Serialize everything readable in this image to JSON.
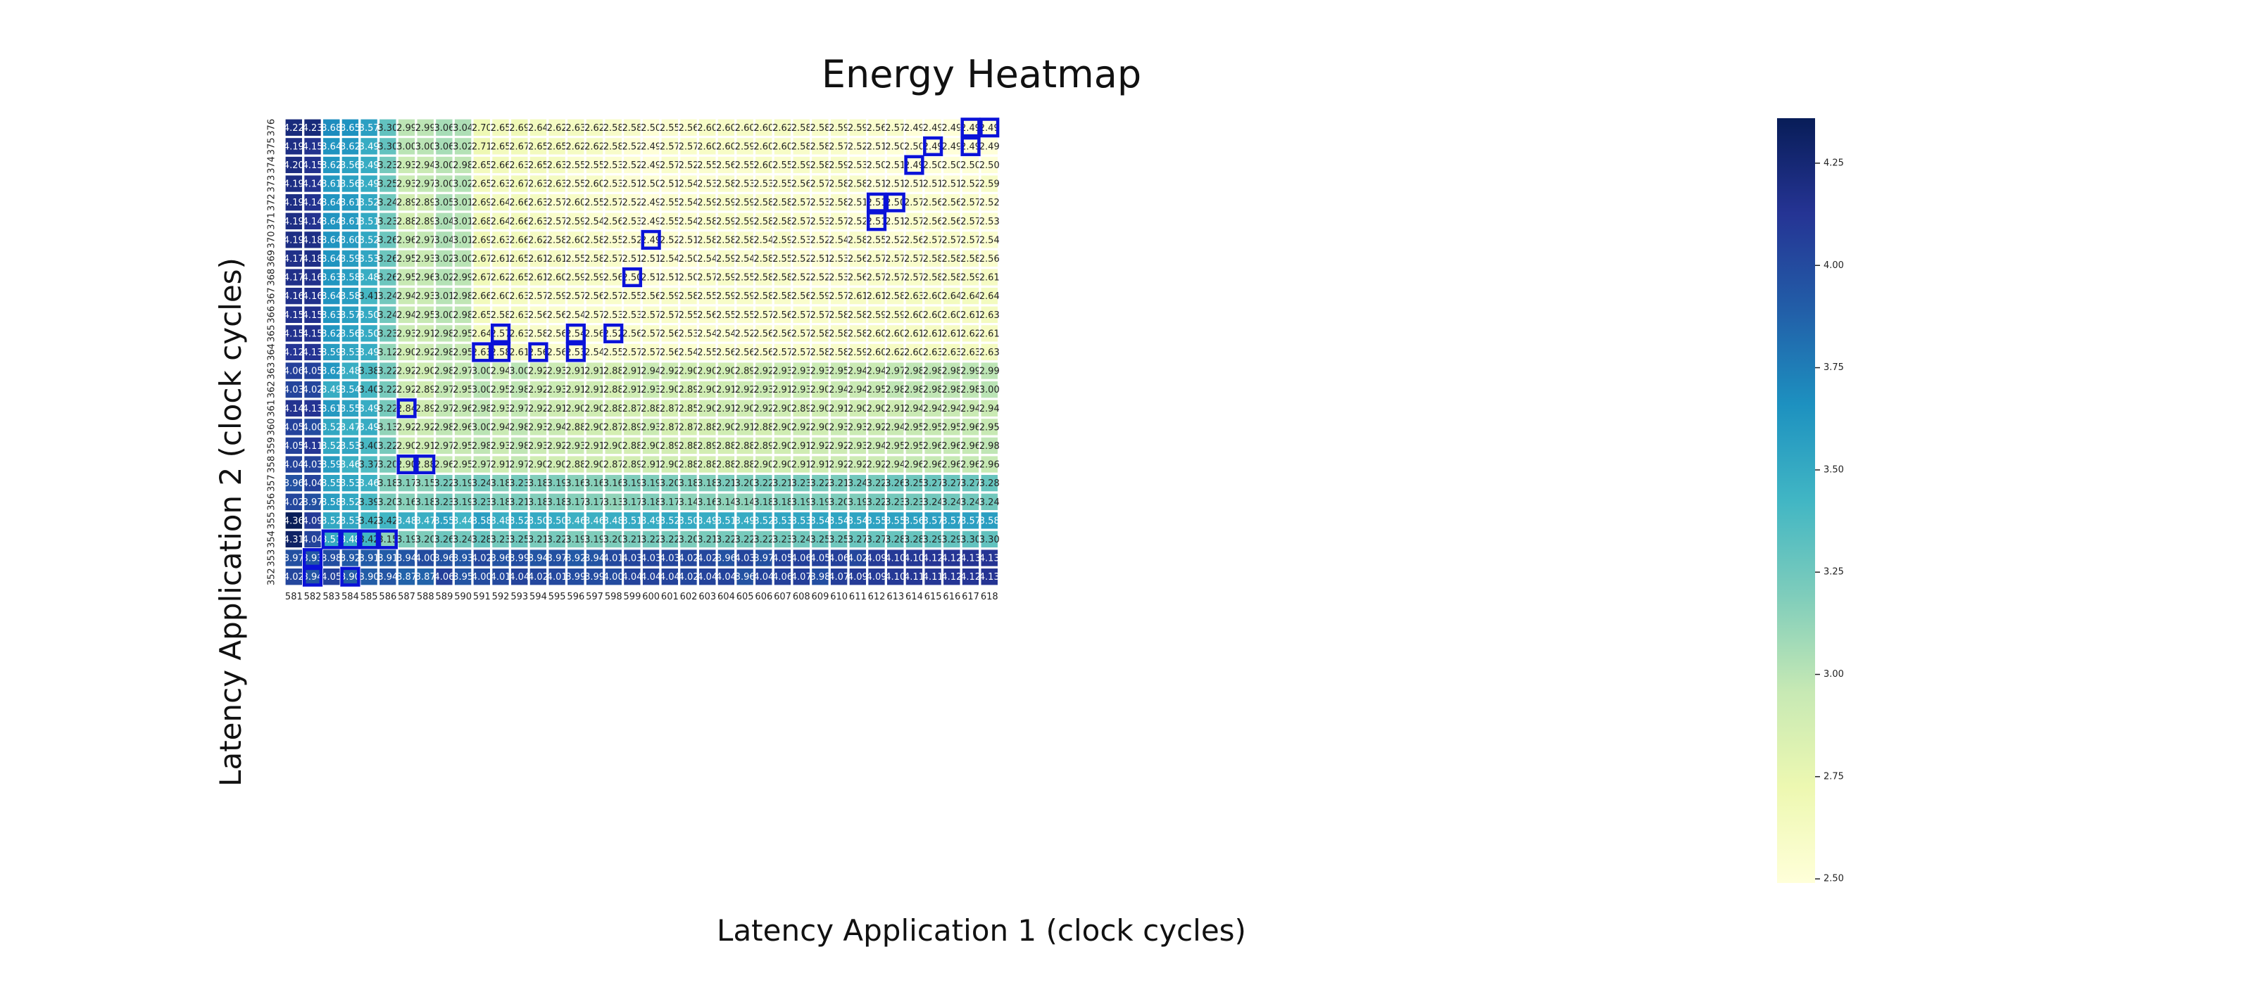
{
  "chart_data": {
    "type": "heatmap",
    "title": "Energy Heatmap",
    "xlabel": "Latency Application 1 (clock cycles)",
    "ylabel": "Latency Application 2 (clock cycles)",
    "x": [
      581,
      582,
      583,
      584,
      585,
      586,
      587,
      588,
      589,
      590,
      591,
      592,
      593,
      594,
      595,
      596,
      597,
      598,
      599,
      600,
      601,
      602,
      603,
      604,
      605,
      606,
      607,
      608,
      609,
      610,
      611,
      612,
      613,
      614,
      615,
      616,
      617,
      618
    ],
    "y": [
      376,
      375,
      374,
      373,
      372,
      371,
      370,
      369,
      368,
      367,
      366,
      365,
      364,
      363,
      362,
      361,
      360,
      359,
      358,
      357,
      356,
      355,
      354,
      353,
      352
    ],
    "values": [
      [
        4.22,
        4.23,
        3.68,
        3.65,
        3.57,
        3.3,
        2.99,
        2.99,
        3.06,
        3.04,
        2.7,
        2.65,
        2.69,
        2.64,
        2.62,
        2.63,
        2.62,
        2.58,
        2.58,
        2.5,
        2.55,
        2.56,
        2.6,
        2.6,
        2.6,
        2.6,
        2.62,
        2.58,
        2.58,
        2.59,
        2.59,
        2.56,
        2.57,
        2.49,
        2.49,
        2.49,
        2.49,
        2.49
      ],
      [
        4.19,
        4.15,
        3.64,
        3.62,
        3.49,
        3.3,
        3.0,
        3.0,
        3.06,
        3.02,
        2.71,
        2.65,
        2.67,
        2.65,
        2.65,
        2.62,
        2.62,
        2.58,
        2.52,
        2.49,
        2.57,
        2.57,
        2.6,
        2.6,
        2.59,
        2.6,
        2.6,
        2.58,
        2.58,
        2.57,
        2.52,
        2.51,
        2.5,
        2.5,
        2.49,
        2.49,
        2.49,
        2.49
      ],
      [
        4.2,
        4.15,
        3.62,
        3.56,
        3.49,
        3.23,
        2.93,
        2.94,
        3.0,
        2.98,
        2.65,
        2.66,
        2.63,
        2.65,
        2.63,
        2.55,
        2.55,
        2.53,
        2.52,
        2.49,
        2.57,
        2.52,
        2.55,
        2.56,
        2.55,
        2.6,
        2.55,
        2.59,
        2.58,
        2.59,
        2.53,
        2.5,
        2.51,
        2.49,
        2.5,
        2.5,
        2.5,
        2.5
      ],
      [
        4.19,
        4.14,
        3.61,
        3.56,
        3.49,
        3.25,
        2.93,
        2.97,
        3.0,
        3.02,
        2.65,
        2.63,
        2.67,
        2.63,
        2.63,
        2.55,
        2.6,
        2.53,
        2.51,
        2.5,
        2.51,
        2.54,
        2.53,
        2.58,
        2.53,
        2.53,
        2.55,
        2.56,
        2.57,
        2.58,
        2.58,
        2.51,
        2.51,
        2.51,
        2.51,
        2.51,
        2.52,
        2.59
      ],
      [
        4.19,
        4.14,
        3.64,
        3.61,
        3.52,
        3.24,
        2.89,
        2.89,
        3.05,
        3.01,
        2.69,
        2.64,
        2.66,
        2.63,
        2.57,
        2.6,
        2.55,
        2.57,
        2.52,
        2.49,
        2.55,
        2.54,
        2.59,
        2.59,
        2.59,
        2.58,
        2.58,
        2.57,
        2.53,
        2.58,
        2.51,
        2.51,
        2.5,
        2.57,
        2.56,
        2.56,
        2.57,
        2.52
      ],
      [
        4.19,
        4.14,
        3.64,
        3.61,
        3.51,
        3.23,
        2.88,
        2.89,
        3.04,
        3.01,
        2.68,
        2.64,
        2.66,
        2.63,
        2.57,
        2.59,
        2.54,
        2.56,
        2.53,
        2.49,
        2.55,
        2.54,
        2.58,
        2.59,
        2.59,
        2.58,
        2.58,
        2.57,
        2.53,
        2.57,
        2.52,
        2.51,
        2.51,
        2.57,
        2.56,
        2.56,
        2.57,
        2.53
      ],
      [
        4.19,
        4.18,
        3.64,
        3.6,
        3.52,
        3.26,
        2.96,
        2.97,
        3.04,
        3.01,
        2.69,
        2.63,
        2.66,
        2.62,
        2.58,
        2.6,
        2.58,
        2.55,
        2.52,
        2.49,
        2.52,
        2.51,
        2.58,
        2.58,
        2.58,
        2.54,
        2.59,
        2.53,
        2.52,
        2.54,
        2.58,
        2.55,
        2.52,
        2.56,
        2.57,
        2.57,
        2.57,
        2.54
      ],
      [
        4.17,
        4.18,
        3.64,
        3.59,
        3.53,
        3.26,
        2.95,
        2.93,
        3.02,
        3.0,
        2.67,
        2.61,
        2.65,
        2.61,
        2.61,
        2.55,
        2.58,
        2.57,
        2.51,
        2.51,
        2.54,
        2.5,
        2.54,
        2.59,
        2.54,
        2.58,
        2.55,
        2.52,
        2.51,
        2.53,
        2.56,
        2.57,
        2.57,
        2.57,
        2.58,
        2.58,
        2.58,
        2.56
      ],
      [
        4.17,
        4.16,
        3.63,
        3.58,
        3.48,
        3.26,
        2.95,
        2.96,
        3.02,
        2.99,
        2.67,
        2.62,
        2.65,
        2.61,
        2.6,
        2.59,
        2.59,
        2.56,
        2.5,
        2.51,
        2.51,
        2.5,
        2.57,
        2.59,
        2.55,
        2.58,
        2.58,
        2.52,
        2.52,
        2.53,
        2.56,
        2.57,
        2.57,
        2.57,
        2.58,
        2.58,
        2.59,
        2.61
      ],
      [
        4.16,
        4.16,
        3.64,
        3.58,
        3.41,
        3.24,
        2.94,
        2.93,
        3.01,
        2.98,
        2.66,
        2.6,
        2.63,
        2.57,
        2.59,
        2.57,
        2.56,
        2.57,
        2.55,
        2.56,
        2.59,
        2.58,
        2.55,
        2.59,
        2.59,
        2.58,
        2.58,
        2.56,
        2.59,
        2.57,
        2.61,
        2.61,
        2.58,
        2.63,
        2.6,
        2.64,
        2.64,
        2.64
      ],
      [
        4.15,
        4.15,
        3.63,
        3.57,
        3.5,
        3.24,
        2.94,
        2.95,
        3.0,
        2.98,
        2.65,
        2.58,
        2.63,
        2.56,
        2.56,
        2.54,
        2.57,
        2.53,
        2.53,
        2.57,
        2.57,
        2.55,
        2.56,
        2.55,
        2.55,
        2.57,
        2.56,
        2.57,
        2.57,
        2.58,
        2.58,
        2.59,
        2.59,
        2.6,
        2.6,
        2.6,
        2.61,
        2.63
      ],
      [
        4.15,
        4.15,
        3.62,
        3.56,
        3.5,
        3.23,
        2.93,
        2.91,
        2.98,
        2.95,
        2.64,
        2.57,
        2.63,
        2.58,
        2.56,
        2.54,
        2.56,
        2.52,
        2.56,
        2.57,
        2.56,
        2.53,
        2.54,
        2.54,
        2.52,
        2.56,
        2.56,
        2.57,
        2.58,
        2.58,
        2.58,
        2.6,
        2.6,
        2.61,
        2.61,
        2.61,
        2.62,
        2.61
      ],
      [
        4.12,
        4.13,
        3.59,
        3.53,
        3.49,
        3.12,
        2.9,
        2.92,
        2.98,
        2.95,
        2.63,
        2.58,
        2.61,
        2.56,
        2.56,
        2.53,
        2.54,
        2.55,
        2.57,
        2.57,
        2.56,
        2.54,
        2.55,
        2.56,
        2.56,
        2.56,
        2.57,
        2.57,
        2.58,
        2.58,
        2.59,
        2.6,
        2.62,
        2.6,
        2.63,
        2.63,
        2.63,
        2.63
      ],
      [
        4.06,
        4.05,
        3.62,
        3.48,
        3.38,
        3.22,
        2.92,
        2.9,
        2.98,
        2.97,
        3.0,
        2.94,
        3.0,
        2.92,
        2.93,
        2.91,
        2.91,
        2.88,
        2.91,
        2.94,
        2.92,
        2.9,
        2.9,
        2.9,
        2.89,
        2.92,
        2.93,
        2.93,
        2.93,
        2.95,
        2.94,
        2.94,
        2.97,
        2.98,
        2.98,
        2.98,
        2.99,
        2.99
      ],
      [
        4.03,
        4.02,
        3.49,
        3.54,
        3.4,
        3.22,
        2.92,
        2.89,
        2.97,
        2.95,
        3.0,
        2.95,
        2.98,
        2.92,
        2.93,
        2.91,
        2.91,
        2.88,
        2.91,
        2.93,
        2.9,
        2.89,
        2.9,
        2.91,
        2.92,
        2.93,
        2.91,
        2.93,
        2.9,
        2.94,
        2.94,
        2.95,
        2.98,
        2.98,
        2.98,
        2.98,
        2.98,
        3.0
      ],
      [
        4.14,
        4.13,
        3.61,
        3.55,
        3.49,
        3.22,
        2.84,
        2.89,
        2.97,
        2.96,
        2.98,
        2.93,
        2.97,
        2.92,
        2.91,
        2.9,
        2.9,
        2.88,
        2.87,
        2.88,
        2.87,
        2.85,
        2.9,
        2.91,
        2.9,
        2.92,
        2.9,
        2.89,
        2.9,
        2.91,
        2.9,
        2.9,
        2.91,
        2.94,
        2.94,
        2.94,
        2.94,
        2.94
      ],
      [
        4.05,
        4.0,
        3.52,
        3.47,
        3.49,
        3.13,
        2.92,
        2.92,
        2.98,
        2.96,
        3.0,
        2.94,
        2.98,
        2.93,
        2.94,
        2.88,
        2.9,
        2.87,
        2.89,
        2.93,
        2.87,
        2.87,
        2.88,
        2.9,
        2.91,
        2.88,
        2.9,
        2.92,
        2.9,
        2.93,
        2.93,
        2.92,
        2.94,
        2.95,
        2.95,
        2.95,
        2.96,
        2.95
      ],
      [
        4.05,
        4.11,
        3.52,
        3.53,
        3.4,
        3.22,
        2.9,
        2.91,
        2.97,
        2.95,
        2.98,
        2.93,
        2.98,
        2.93,
        2.92,
        2.93,
        2.91,
        2.9,
        2.88,
        2.9,
        2.89,
        2.88,
        2.89,
        2.88,
        2.88,
        2.89,
        2.9,
        2.91,
        2.92,
        2.92,
        2.93,
        2.94,
        2.95,
        2.95,
        2.96,
        2.96,
        2.96,
        2.98
      ],
      [
        4.04,
        4.03,
        3.59,
        3.46,
        3.37,
        3.2,
        2.9,
        2.88,
        2.96,
        2.95,
        2.97,
        2.91,
        2.97,
        2.9,
        2.9,
        2.88,
        2.9,
        2.87,
        2.89,
        2.91,
        2.9,
        2.88,
        2.88,
        2.88,
        2.88,
        2.9,
        2.9,
        2.91,
        2.91,
        2.92,
        2.92,
        2.92,
        2.94,
        2.96,
        2.96,
        2.96,
        2.96,
        2.96
      ],
      [
        3.96,
        4.04,
        3.55,
        3.53,
        3.46,
        3.18,
        3.17,
        3.15,
        3.22,
        3.19,
        3.24,
        3.18,
        3.23,
        3.18,
        3.19,
        3.16,
        3.16,
        3.16,
        3.19,
        3.19,
        3.2,
        3.18,
        3.18,
        3.21,
        3.2,
        3.22,
        3.21,
        3.23,
        3.22,
        3.21,
        3.24,
        3.22,
        3.26,
        3.25,
        3.27,
        3.27,
        3.27,
        3.28
      ],
      [
        4.02,
        3.97,
        3.58,
        3.52,
        3.39,
        3.2,
        3.16,
        3.18,
        3.23,
        3.19,
        3.23,
        3.18,
        3.21,
        3.18,
        3.18,
        3.17,
        3.17,
        3.13,
        3.17,
        3.18,
        3.17,
        3.14,
        3.16,
        3.14,
        3.14,
        3.18,
        3.18,
        3.19,
        3.19,
        3.2,
        3.19,
        3.22,
        3.23,
        3.23,
        3.24,
        3.24,
        3.24,
        3.24
      ],
      [
        4.36,
        4.09,
        3.52,
        3.53,
        3.42,
        3.42,
        3.48,
        3.47,
        3.55,
        3.44,
        3.58,
        3.48,
        3.52,
        3.5,
        3.5,
        3.46,
        3.46,
        3.48,
        3.51,
        3.49,
        3.52,
        3.5,
        3.49,
        3.51,
        3.49,
        3.52,
        3.53,
        3.53,
        3.54,
        3.54,
        3.54,
        3.55,
        3.55,
        3.56,
        3.57,
        3.57,
        3.57,
        3.58
      ],
      [
        4.31,
        4.04,
        3.51,
        3.48,
        3.42,
        3.15,
        3.19,
        3.2,
        3.26,
        3.24,
        3.28,
        3.23,
        3.25,
        3.21,
        3.22,
        3.19,
        3.19,
        3.2,
        3.21,
        3.22,
        3.22,
        3.2,
        3.21,
        3.22,
        3.22,
        3.22,
        3.23,
        3.24,
        3.25,
        3.25,
        3.27,
        3.27,
        3.28,
        3.28,
        3.29,
        3.29,
        3.3,
        3.3
      ],
      [
        3.97,
        3.93,
        3.98,
        3.92,
        3.91,
        3.91,
        3.94,
        4.0,
        3.96,
        3.93,
        4.02,
        3.96,
        3.99,
        3.94,
        3.97,
        3.92,
        3.94,
        4.01,
        4.03,
        4.03,
        4.03,
        4.02,
        4.02,
        3.96,
        4.03,
        3.97,
        4.05,
        4.06,
        4.05,
        4.06,
        4.02,
        4.09,
        4.1,
        4.1,
        4.12,
        4.12,
        4.13,
        4.13
      ],
      [
        4.02,
        3.94,
        4.05,
        3.9,
        3.9,
        3.94,
        3.87,
        3.87,
        4.06,
        3.95,
        4.0,
        4.01,
        4.04,
        4.02,
        4.01,
        3.99,
        3.99,
        4.0,
        4.04,
        4.04,
        4.04,
        4.02,
        4.04,
        4.04,
        3.96,
        4.04,
        4.06,
        4.07,
        3.98,
        4.07,
        4.09,
        4.09,
        4.1,
        4.11,
        4.11,
        4.12,
        4.12,
        4.13
      ]
    ],
    "highlighted_cells": [
      [
        376,
        617
      ],
      [
        376,
        618
      ],
      [
        375,
        615
      ],
      [
        375,
        617
      ],
      [
        374,
        614
      ],
      [
        372,
        612
      ],
      [
        372,
        613
      ],
      [
        371,
        612
      ],
      [
        370,
        600
      ],
      [
        368,
        599
      ],
      [
        365,
        592
      ],
      [
        365,
        596
      ],
      [
        365,
        598
      ],
      [
        364,
        591
      ],
      [
        364,
        592
      ],
      [
        364,
        594
      ],
      [
        364,
        596
      ],
      [
        361,
        587
      ],
      [
        358,
        587
      ],
      [
        358,
        588
      ],
      [
        354,
        583
      ],
      [
        354,
        584
      ],
      [
        354,
        585
      ],
      [
        354,
        586
      ],
      [
        353,
        582
      ],
      [
        352,
        582
      ],
      [
        352,
        584
      ]
    ],
    "colorbar": {
      "range": [
        2.49,
        4.36
      ],
      "ticks": [
        "2.50",
        "2.75",
        "3.00",
        "3.25",
        "3.50",
        "3.75",
        "4.00",
        "4.25"
      ],
      "colormap": [
        "#ffffd9",
        "#edf8b1",
        "#c7e9b4",
        "#7fcdbb",
        "#41b6c4",
        "#1d91c0",
        "#225ea8",
        "#253494",
        "#081d58"
      ]
    },
    "highlight_color": "#0a12d8"
  }
}
